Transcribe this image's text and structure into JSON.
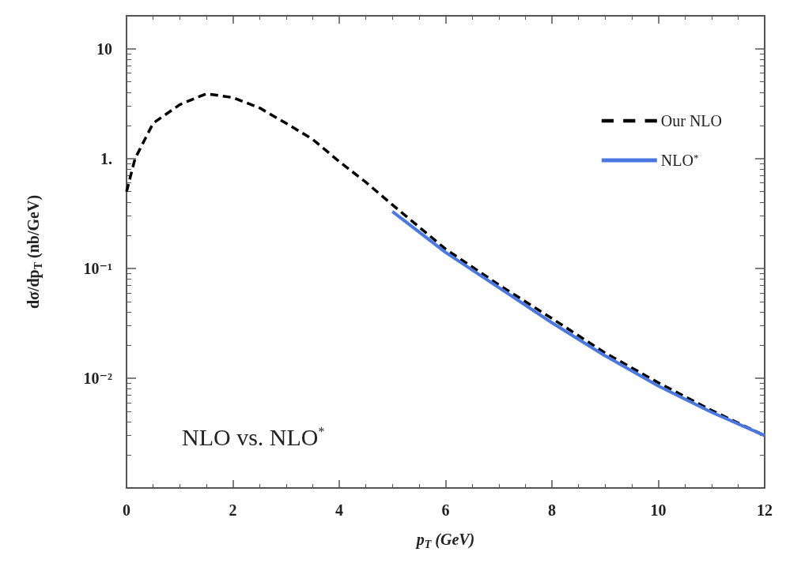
{
  "chart_data": {
    "type": "line",
    "xlabel": "p$_{T}$ (GeV)",
    "ylabel": "dσ/dp$_{T}$ (nb/GeV)",
    "annotations": [
      "NLO vs. NLO$^{*}$"
    ],
    "series": [
      {
        "name": "Our NLO",
        "color": "#000000",
        "line_style": "dashed",
        "x": [
          0,
          0.16,
          0.5,
          1,
          1.5,
          2,
          2.5,
          3,
          3.5,
          4,
          4.5,
          5,
          6,
          7,
          8,
          9,
          10,
          11,
          12
        ],
        "values": [
          0.5,
          1.0,
          2.1,
          3.1,
          3.9,
          3.6,
          2.9,
          2.1,
          1.5,
          0.94,
          0.61,
          0.38,
          0.15,
          0.071,
          0.035,
          0.017,
          0.0091,
          0.0051,
          0.003
        ]
      },
      {
        "name": "NLO$^{*}$",
        "color": "#4a78e0",
        "line_style": "solid",
        "x": [
          5,
          6,
          7,
          8,
          9,
          10,
          11,
          12
        ],
        "values": [
          0.33,
          0.14,
          0.067,
          0.032,
          0.016,
          0.0085,
          0.0049,
          0.003
        ]
      }
    ],
    "xlim": [
      0,
      12
    ],
    "xticks": [
      0,
      2,
      4,
      6,
      8,
      10,
      12
    ],
    "ylim": [
      0.001,
      20
    ],
    "yticks": [
      {
        "value": 0.01,
        "label": "10⁻²"
      },
      {
        "value": 0.1,
        "label": "10⁻¹"
      },
      {
        "value": 1,
        "label": "1."
      },
      10
    ],
    "log": "y",
    "grid": false,
    "legend": "top right",
    "marker": "none"
  }
}
